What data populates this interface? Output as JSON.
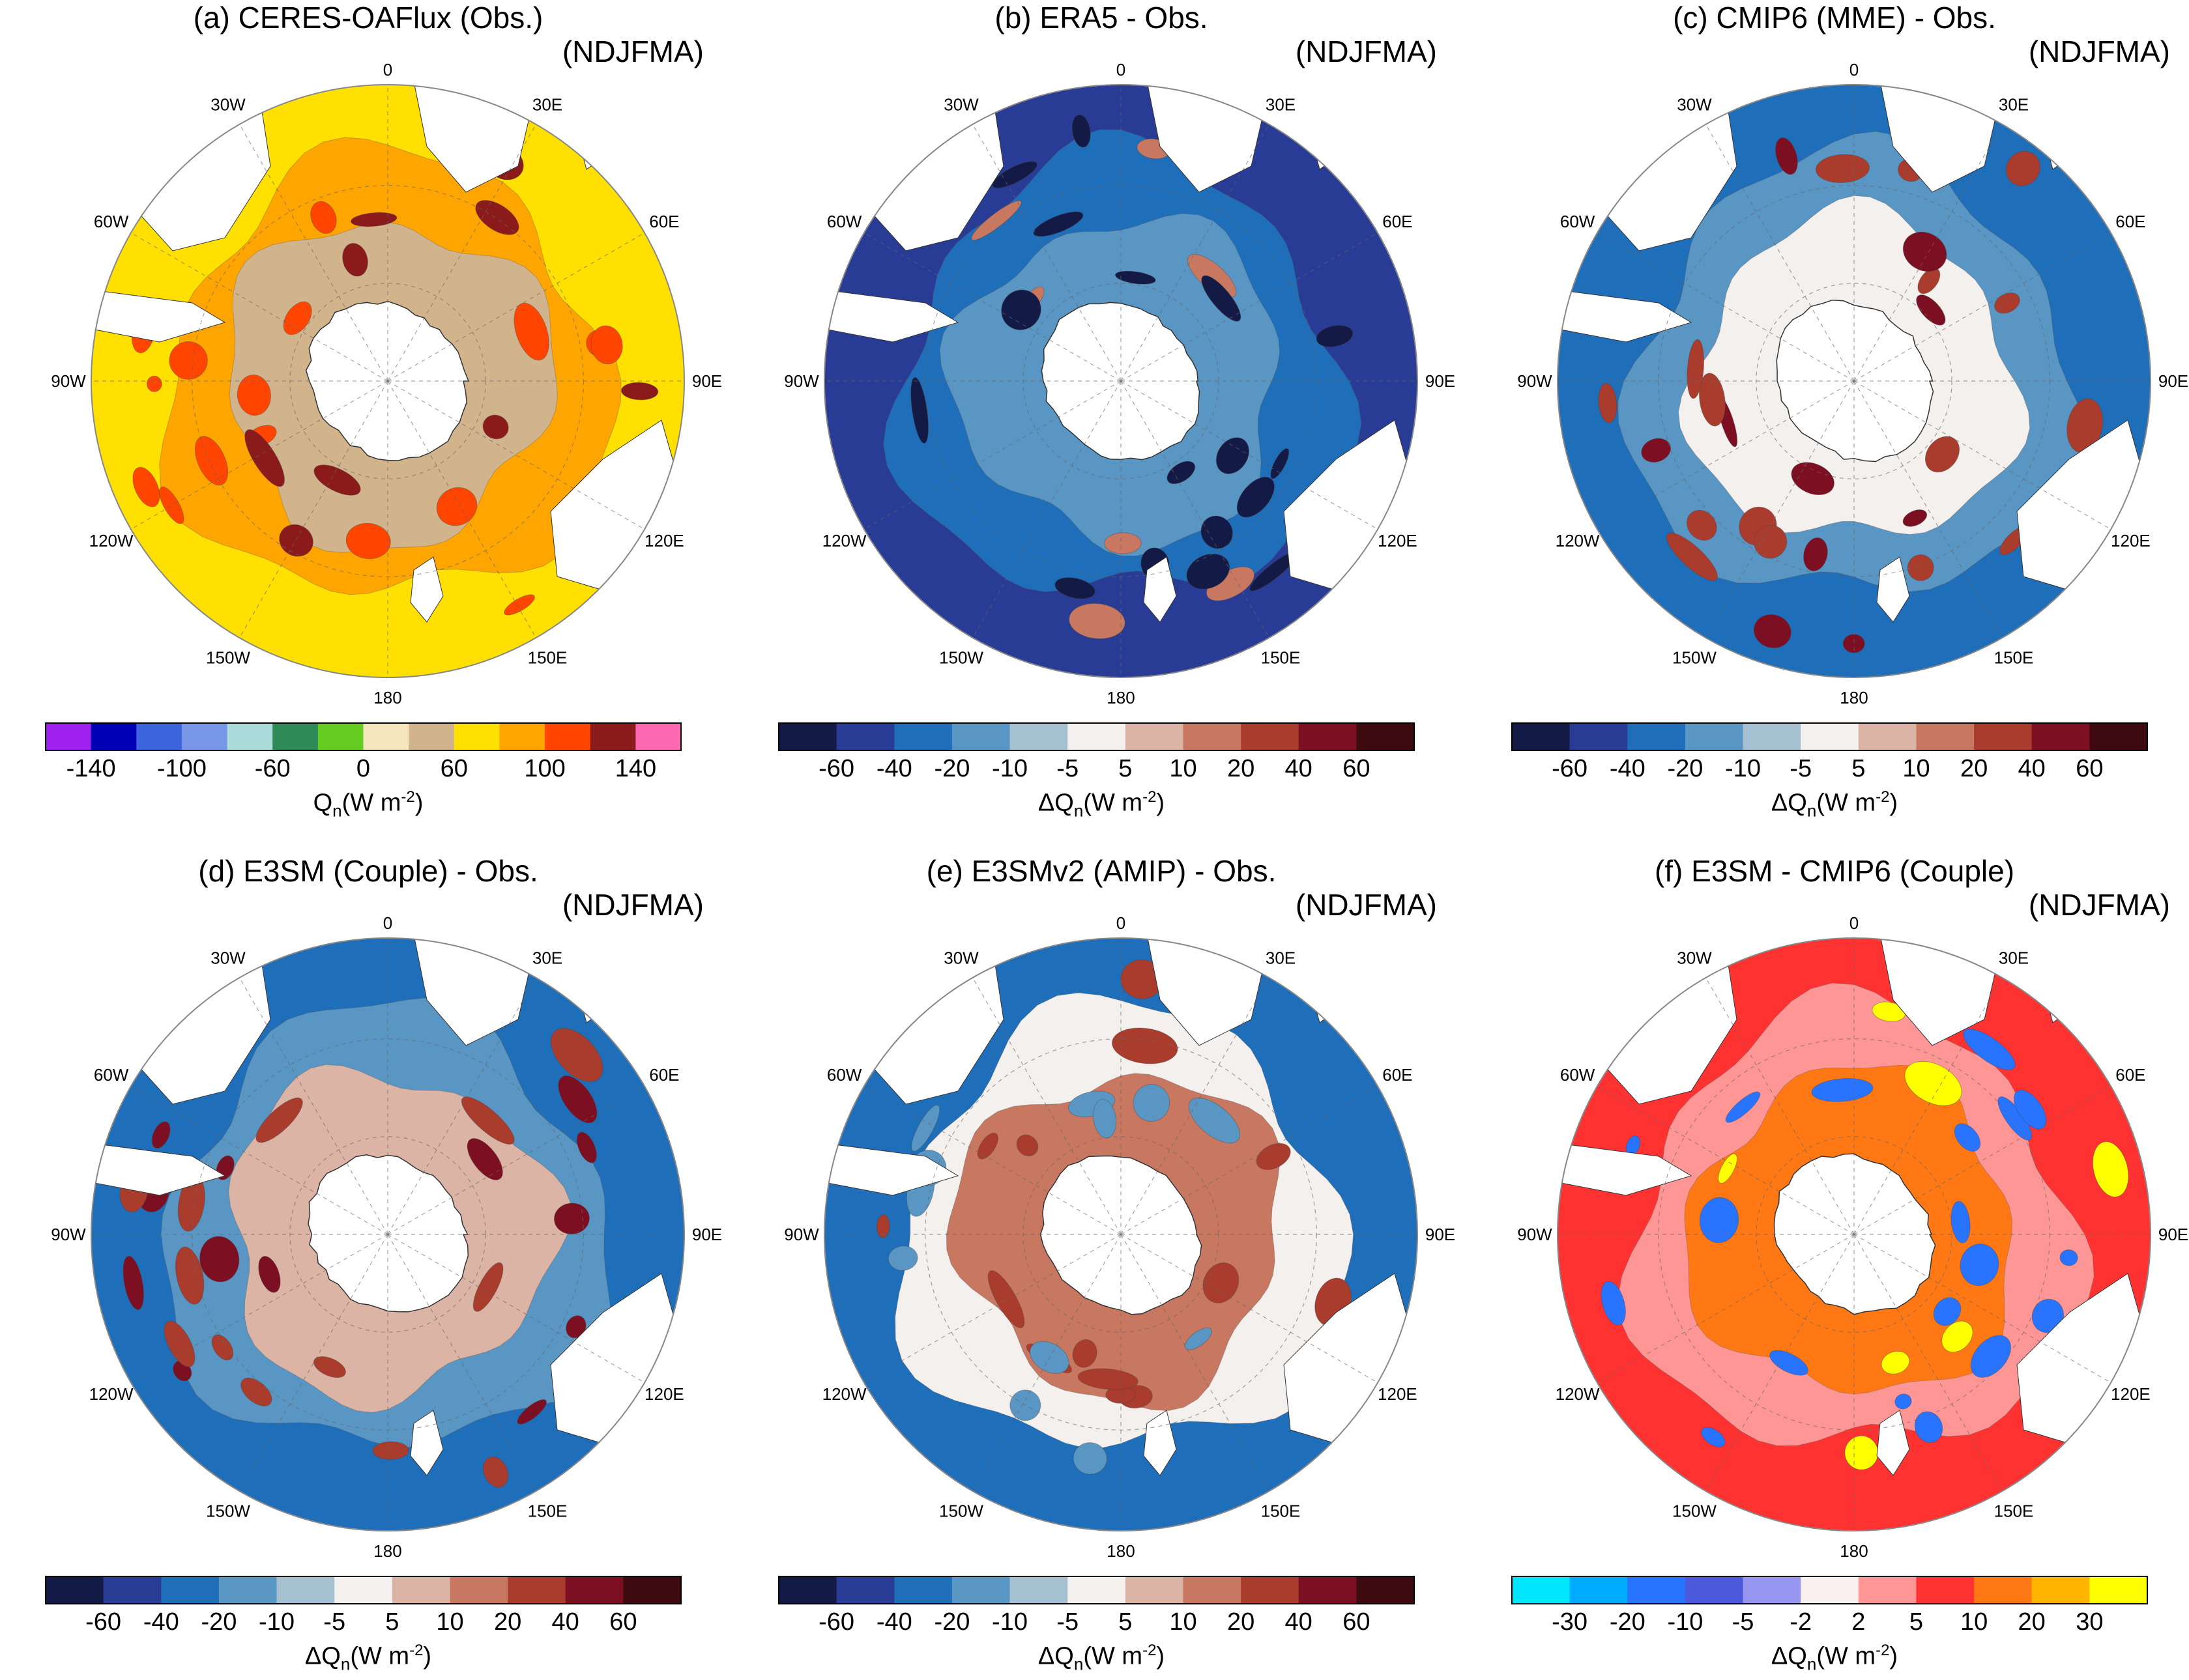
{
  "panels": [
    {
      "title": "(a) CERES-OAFlux (Obs.)",
      "season": "(NDJFMA)",
      "colorbar": {
        "label_prefix": "Q",
        "label_sub": "n",
        "label_unit": "(W m",
        "label_sup": "-2",
        "label_end": ")",
        "colors": [
          "#a020f0",
          "#0000b4",
          "#3c64dc",
          "#7896e6",
          "#aadcdc",
          "#2e8b57",
          "#66cc22",
          "#f5e6be",
          "#d2b48c",
          "#ffe000",
          "#ffa500",
          "#ff4500",
          "#8b1a1a",
          "#ff69b4"
        ],
        "ticks": [
          "-140",
          "",
          "-100",
          "",
          "-60",
          "",
          "0",
          "",
          "60",
          "",
          "100",
          "",
          "140"
        ]
      }
    },
    {
      "title": "(b) ERA5 - Obs.",
      "season": "(NDJFMA)",
      "colorbar": {
        "label_prefix": "ΔQ",
        "label_sub": "n",
        "label_unit": "(W m",
        "label_sup": "-2",
        "label_end": ")",
        "colors": [
          "#141a46",
          "#283c96",
          "#1e6eb9",
          "#5a96c3",
          "#a5c0d0",
          "#f3f0ee",
          "#dcb4a5",
          "#c87860",
          "#aa3c2d",
          "#7d0f23",
          "#3c0a0f"
        ],
        "ticks": [
          "-60",
          "-40",
          "-20",
          "-10",
          "-5",
          "5",
          "10",
          "20",
          "40",
          "60"
        ]
      }
    },
    {
      "title": "(c) CMIP6 (MME) - Obs.",
      "season": "(NDJFMA)",
      "colorbar": {
        "label_prefix": "ΔQ",
        "label_sub": "n",
        "label_unit": "(W m",
        "label_sup": "-2",
        "label_end": ")",
        "colors": [
          "#141a46",
          "#283c96",
          "#1e6eb9",
          "#5a96c3",
          "#a5c0d0",
          "#f3f0ee",
          "#dcb4a5",
          "#c87860",
          "#aa3c2d",
          "#7d0f23",
          "#3c0a0f"
        ],
        "ticks": [
          "-60",
          "-40",
          "-20",
          "-10",
          "-5",
          "5",
          "10",
          "20",
          "40",
          "60"
        ]
      }
    },
    {
      "title": "(d) E3SM (Couple) - Obs.",
      "season": "(NDJFMA)",
      "colorbar": {
        "label_prefix": "ΔQ",
        "label_sub": "n",
        "label_unit": "(W m",
        "label_sup": "-2",
        "label_end": ")",
        "colors": [
          "#141a46",
          "#283c96",
          "#1e6eb9",
          "#5a96c3",
          "#a5c0d0",
          "#f3f0ee",
          "#dcb4a5",
          "#c87860",
          "#aa3c2d",
          "#7d0f23",
          "#3c0a0f"
        ],
        "ticks": [
          "-60",
          "-40",
          "-20",
          "-10",
          "-5",
          "5",
          "10",
          "20",
          "40",
          "60"
        ]
      }
    },
    {
      "title": "(e) E3SMv2 (AMIP) - Obs.",
      "season": "(NDJFMA)",
      "colorbar": {
        "label_prefix": "ΔQ",
        "label_sub": "n",
        "label_unit": "(W m",
        "label_sup": "-2",
        "label_end": ")",
        "colors": [
          "#141a46",
          "#283c96",
          "#1e6eb9",
          "#5a96c3",
          "#a5c0d0",
          "#f3f0ee",
          "#dcb4a5",
          "#c87860",
          "#aa3c2d",
          "#7d0f23",
          "#3c0a0f"
        ],
        "ticks": [
          "-60",
          "-40",
          "-20",
          "-10",
          "-5",
          "5",
          "10",
          "20",
          "40",
          "60"
        ]
      }
    },
    {
      "title": "(f) E3SM - CMIP6 (Couple)",
      "season": "(NDJFMA)",
      "colorbar": {
        "label_prefix": "ΔQ",
        "label_sub": "n",
        "label_unit": "(W m",
        "label_sup": "-2",
        "label_end": ")",
        "colors": [
          "#00e6ff",
          "#00aaff",
          "#2873ff",
          "#4b5adc",
          "#9696f0",
          "#faf0f0",
          "#ff9696",
          "#ff3232",
          "#ff7814",
          "#ffb400",
          "#ffff00"
        ],
        "ticks": [
          "-30",
          "-20",
          "-10",
          "-5",
          "-2",
          "2",
          "5",
          "10",
          "20",
          "30"
        ]
      }
    }
  ],
  "longitude_labels": [
    "0",
    "30E",
    "60E",
    "90E",
    "120E",
    "150E",
    "180",
    "150W",
    "120W",
    "90W",
    "60W",
    "30W"
  ],
  "field_colors": {
    "a": {
      "ocean": "#ffe000",
      "band1": "#ffa500",
      "band2": "#d2b48c",
      "hot": "#ff4500",
      "hot2": "#8b1a1a"
    },
    "b": {
      "ocean": "#283c96",
      "band1": "#1e6eb9",
      "band2": "#5a96c3",
      "hot": "#141a46",
      "hot2": "#c87860"
    },
    "c": {
      "ocean": "#1e6eb9",
      "band1": "#5a96c3",
      "band2": "#f3f0ee",
      "hot": "#aa3c2d",
      "hot2": "#7d0f23"
    },
    "d": {
      "ocean": "#1e6eb9",
      "band1": "#5a96c3",
      "band2": "#dcb4a5",
      "hot": "#aa3c2d",
      "hot2": "#7d0f23"
    },
    "e": {
      "ocean": "#1e6eb9",
      "band1": "#f3f0ee",
      "band2": "#c87860",
      "hot": "#aa3c2d",
      "hot2": "#5a96c3"
    },
    "f": {
      "ocean": "#ff3232",
      "band1": "#ff9696",
      "band2": "#ff7814",
      "hot": "#2873ff",
      "hot2": "#ffff00"
    }
  }
}
